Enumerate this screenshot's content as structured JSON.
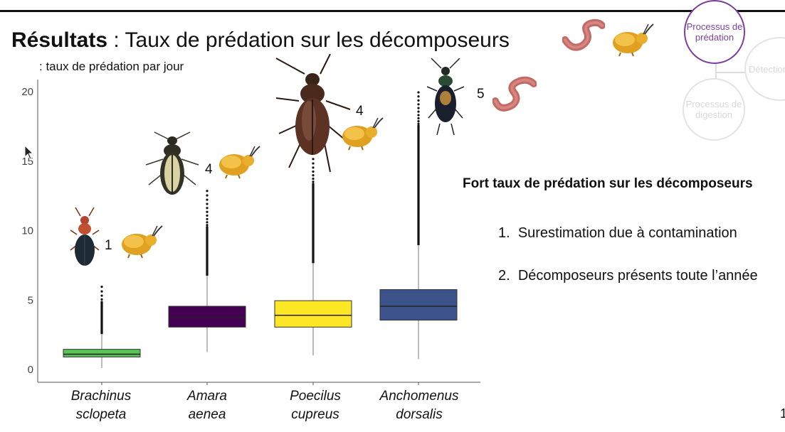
{
  "slide": {
    "title_bold": "Résultats",
    "title_rest": " : Taux de prédation sur les décomposeurs",
    "subtitle": ": taux de prédation par jour",
    "conclusion": "Fort taux de prédation sur les décomposeurs",
    "list": [
      {
        "num": "1.",
        "text": "Surestimation due à contamination"
      },
      {
        "num": "2.",
        "text": "Décomposeurs présents toute l’année"
      }
    ],
    "page_number": "1"
  },
  "diagram": {
    "active": "Processus de prédation",
    "faded_right": "Détection",
    "faded_bottom": "Processus de digestion"
  },
  "species_badges": [
    "1",
    "4",
    "4",
    "5"
  ],
  "icons": [
    "beetle-icon",
    "springtail-icon",
    "earthworm-icon",
    "mouse-cursor-icon"
  ],
  "chart_data": {
    "type": "box",
    "categories": [
      {
        "line1": "Brachinus",
        "line2": "sclopeta"
      },
      {
        "line1": "Amara",
        "line2": "aenea"
      },
      {
        "line1": "Poecilus",
        "line2": "cupreus"
      },
      {
        "line1": "Anchomenus",
        "line2": "dorsalis"
      }
    ],
    "ylim": [
      0,
      20.5
    ],
    "yticks": [
      0,
      5,
      10,
      15,
      20
    ],
    "series": [
      {
        "color": "#5ac35a",
        "min": 0.05,
        "q1": 0.85,
        "median": 1.05,
        "q3": 1.4,
        "max": 2.5,
        "outlier_min": 2.5,
        "outlier_max": 5.9,
        "outlier_dense_to": 4.8
      },
      {
        "color": "#440154",
        "min": 1.2,
        "q1": 3.0,
        "median": 3.7,
        "q3": 4.5,
        "max": 6.7,
        "outlier_min": 6.7,
        "outlier_max": 12.8,
        "outlier_dense_to": 10.2
      },
      {
        "color": "#fde725",
        "min": 0.95,
        "q1": 3.0,
        "median": 3.85,
        "q3": 4.9,
        "max": 7.6,
        "outlier_min": 7.6,
        "outlier_max": 15.1,
        "outlier_dense_to": 13.3
      },
      {
        "color": "#3b528b",
        "min": 0.7,
        "q1": 3.5,
        "median": 4.5,
        "q3": 5.7,
        "max": 8.9,
        "outlier_min": 8.9,
        "outlier_max": 19.9,
        "outlier_dense_to": 17.5
      }
    ]
  }
}
